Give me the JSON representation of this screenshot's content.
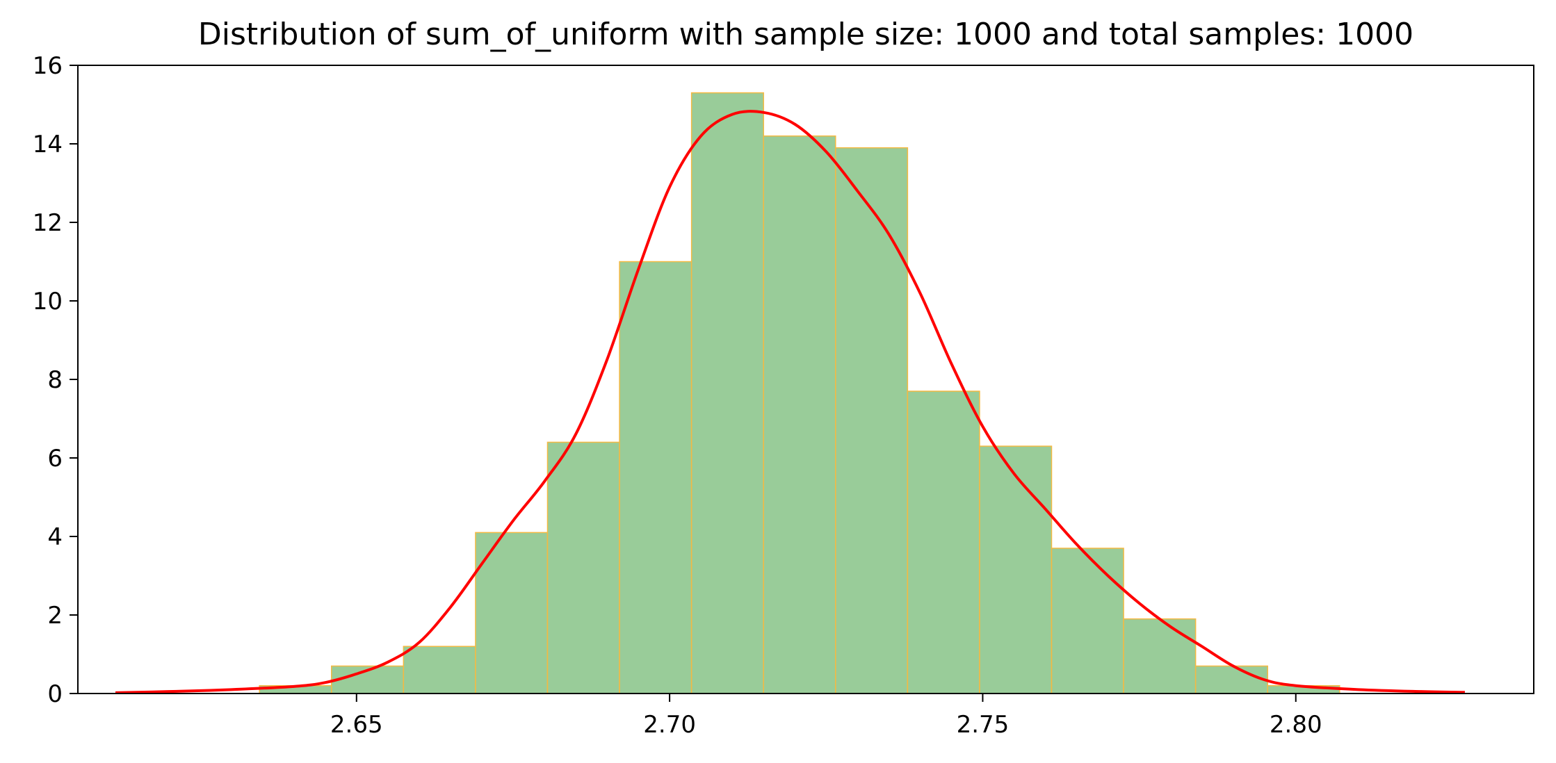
{
  "chart_data": {
    "type": "bar",
    "title": "Distribution of sum_of_uniform with sample size: 1000 and total samples: 1000",
    "xlabel": "",
    "ylabel": "",
    "xlim": [
      2.6055,
      2.838
    ],
    "ylim": [
      0,
      16
    ],
    "xticks": [
      2.65,
      2.7,
      2.75,
      2.8
    ],
    "xtick_labels": [
      "2.65",
      "2.70",
      "2.75",
      "2.80"
    ],
    "yticks": [
      0,
      2,
      4,
      6,
      8,
      10,
      12,
      14,
      16
    ],
    "ytick_labels": [
      "0",
      "2",
      "4",
      "6",
      "8",
      "10",
      "12",
      "14",
      "16"
    ],
    "grid": false,
    "legend": "none",
    "histogram": {
      "bin_edges": [
        2.6115,
        2.623,
        2.6345,
        2.646,
        2.6575,
        2.669,
        2.6805,
        2.692,
        2.7035,
        2.715,
        2.7265,
        2.738,
        2.7495,
        2.761,
        2.7725,
        2.784,
        2.7955,
        2.807,
        2.8185,
        2.827
      ],
      "values": [
        0.0,
        0.0,
        0.2,
        0.7,
        1.2,
        4.1,
        6.4,
        11.0,
        15.3,
        14.2,
        13.9,
        7.7,
        6.3,
        3.7,
        1.9,
        0.7,
        0.2,
        0.0,
        0.0
      ],
      "fill_color": "#99cc99",
      "edge_color": "#f5b942"
    },
    "density_curve": {
      "color": "#ff0000",
      "x": [
        2.6115,
        2.62,
        2.63,
        2.64,
        2.645,
        2.65,
        2.655,
        2.66,
        2.665,
        2.67,
        2.675,
        2.68,
        2.685,
        2.69,
        2.695,
        2.7,
        2.705,
        2.71,
        2.715,
        2.72,
        2.725,
        2.73,
        2.735,
        2.74,
        2.745,
        2.75,
        2.755,
        2.76,
        2.765,
        2.77,
        2.775,
        2.78,
        2.785,
        2.79,
        2.795,
        2.8,
        2.81,
        2.82,
        2.827
      ],
      "y": [
        0.02,
        0.05,
        0.1,
        0.18,
        0.28,
        0.5,
        0.8,
        1.3,
        2.2,
        3.3,
        4.4,
        5.4,
        6.6,
        8.5,
        10.8,
        12.9,
        14.2,
        14.75,
        14.8,
        14.5,
        13.8,
        12.8,
        11.7,
        10.2,
        8.4,
        6.8,
        5.6,
        4.7,
        3.8,
        3.0,
        2.3,
        1.7,
        1.2,
        0.7,
        0.35,
        0.2,
        0.1,
        0.05,
        0.03
      ]
    }
  }
}
